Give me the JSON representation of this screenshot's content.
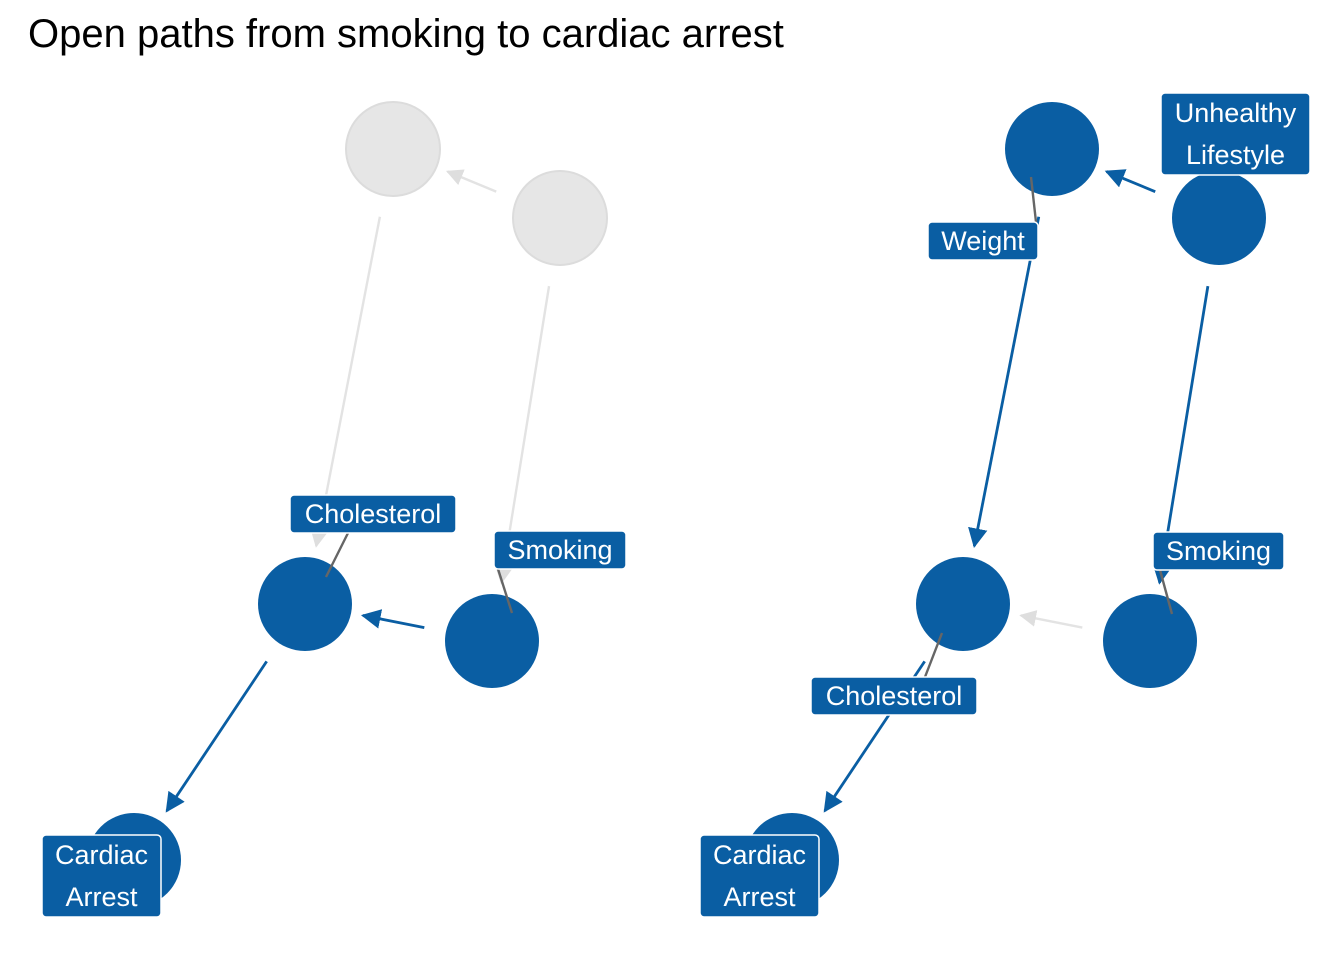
{
  "title": "Open paths from smoking to cardiac arrest",
  "colors": {
    "active": "#0a5ea3",
    "inactive": "#e6e6e6",
    "inactive_stroke": "#dcdcdc",
    "leader": "#666666",
    "label_text": "#ffffff"
  },
  "panels": [
    {
      "id": "left",
      "nodes": [
        {
          "id": "weight",
          "label": "Weight",
          "active": false,
          "shows_label": false
        },
        {
          "id": "lifestyle",
          "label": "Unhealthy Lifestyle",
          "active": false,
          "shows_label": false
        },
        {
          "id": "cholesterol",
          "label": "Cholesterol",
          "active": true,
          "shows_label": true
        },
        {
          "id": "smoking",
          "label": "Smoking",
          "active": true,
          "shows_label": true
        },
        {
          "id": "cardiac",
          "label": "Cardiac Arrest",
          "label_lines": [
            "Cardiac",
            "Arrest"
          ],
          "active": true,
          "shows_label": true
        }
      ],
      "edges": [
        {
          "from": "lifestyle",
          "to": "weight",
          "active": false
        },
        {
          "from": "weight",
          "to": "cholesterol",
          "active": false
        },
        {
          "from": "lifestyle",
          "to": "smoking",
          "active": false
        },
        {
          "from": "smoking",
          "to": "cholesterol",
          "active": true
        },
        {
          "from": "cholesterol",
          "to": "cardiac",
          "active": true
        }
      ]
    },
    {
      "id": "right",
      "nodes": [
        {
          "id": "weight",
          "label": "Weight",
          "active": true,
          "shows_label": true
        },
        {
          "id": "lifestyle",
          "label": "Unhealthy Lifestyle",
          "label_lines": [
            "Unhealthy",
            "Lifestyle"
          ],
          "active": true,
          "shows_label": true
        },
        {
          "id": "cholesterol",
          "label": "Cholesterol",
          "active": true,
          "shows_label": true
        },
        {
          "id": "smoking",
          "label": "Smoking",
          "active": true,
          "shows_label": true
        },
        {
          "id": "cardiac",
          "label": "Cardiac Arrest",
          "label_lines": [
            "Cardiac",
            "Arrest"
          ],
          "active": true,
          "shows_label": true
        }
      ],
      "edges": [
        {
          "from": "lifestyle",
          "to": "weight",
          "active": true
        },
        {
          "from": "weight",
          "to": "cholesterol",
          "active": true
        },
        {
          "from": "lifestyle",
          "to": "smoking",
          "active": true
        },
        {
          "from": "smoking",
          "to": "cholesterol",
          "active": false
        },
        {
          "from": "cholesterol",
          "to": "cardiac",
          "active": true
        }
      ]
    }
  ]
}
